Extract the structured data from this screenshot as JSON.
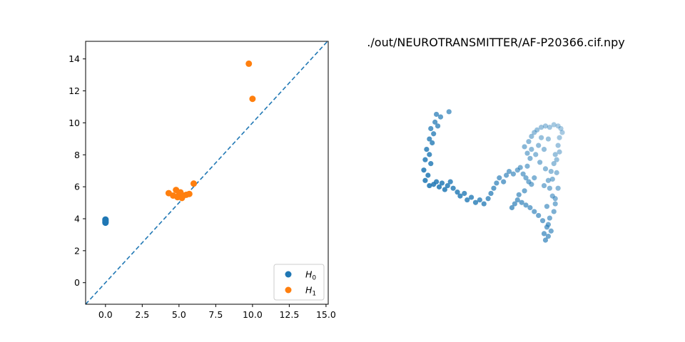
{
  "chart_data": [
    {
      "type": "scatter",
      "title": "",
      "xlabel": "",
      "ylabel": "",
      "xlim": [
        -1.35,
        15.15
      ],
      "ylim": [
        -1.35,
        15.1
      ],
      "xticks": [
        0.0,
        2.5,
        5.0,
        7.5,
        10.0,
        12.5,
        15.0
      ],
      "xtick_labels": [
        "0.0",
        "2.5",
        "5.0",
        "7.5",
        "10.0",
        "12.5",
        "15.0"
      ],
      "yticks": [
        0,
        2,
        4,
        6,
        8,
        10,
        12,
        14
      ],
      "ytick_labels": [
        "0",
        "2",
        "4",
        "6",
        "8",
        "10",
        "12",
        "14"
      ],
      "grid": false,
      "diagonal_line": {
        "style": "dashed",
        "color": "#1f77b4"
      },
      "legend": {
        "position": "lower-right"
      },
      "series": [
        {
          "name": "H0",
          "label_base": "H",
          "label_sub": "0",
          "color": "#1f77b4",
          "points": [
            [
              0,
              3.75
            ],
            [
              0,
              3.8
            ],
            [
              0,
              3.85
            ],
            [
              0,
              3.9
            ],
            [
              0,
              3.95
            ]
          ]
        },
        {
          "name": "H1",
          "label_base": "H",
          "label_sub": "1",
          "color": "#ff7f0e",
          "points": [
            [
              4.3,
              5.6
            ],
            [
              4.6,
              5.45
            ],
            [
              4.8,
              5.8
            ],
            [
              4.9,
              5.35
            ],
            [
              5.0,
              5.5
            ],
            [
              5.1,
              5.65
            ],
            [
              5.2,
              5.3
            ],
            [
              5.3,
              5.45
            ],
            [
              5.5,
              5.5
            ],
            [
              5.7,
              5.55
            ],
            [
              6.0,
              6.2
            ],
            [
              9.75,
              13.7
            ],
            [
              10.0,
              11.5
            ]
          ]
        }
      ]
    },
    {
      "type": "scatter",
      "title": "./out/NEUROTRANSMITTER/AF-P20366.cif.npy",
      "projection": "3d",
      "axes_visible": false,
      "color": "#1f77b4",
      "points_projected": [
        [
          0.1,
          0.97
        ],
        [
          0.13,
          0.95
        ],
        [
          0.19,
          0.99
        ],
        [
          0.09,
          0.91
        ],
        [
          0.11,
          0.88
        ],
        [
          0.06,
          0.86
        ],
        [
          0.08,
          0.82
        ],
        [
          0.05,
          0.78
        ],
        [
          0.07,
          0.75
        ],
        [
          0.03,
          0.7
        ],
        [
          0.05,
          0.66
        ],
        [
          0.02,
          0.62
        ],
        [
          0.06,
          0.59
        ],
        [
          0.01,
          0.54
        ],
        [
          0.04,
          0.5
        ],
        [
          0.02,
          0.46
        ],
        [
          0.05,
          0.42
        ],
        [
          0.08,
          0.43
        ],
        [
          0.1,
          0.45
        ],
        [
          0.12,
          0.41
        ],
        [
          0.14,
          0.44
        ],
        [
          0.16,
          0.39
        ],
        [
          0.18,
          0.42
        ],
        [
          0.2,
          0.45
        ],
        [
          0.22,
          0.4
        ],
        [
          0.25,
          0.37
        ],
        [
          0.27,
          0.34
        ],
        [
          0.3,
          0.36
        ],
        [
          0.32,
          0.31
        ],
        [
          0.35,
          0.33
        ],
        [
          0.38,
          0.29
        ],
        [
          0.41,
          0.31
        ],
        [
          0.44,
          0.28
        ],
        [
          0.47,
          0.32
        ],
        [
          0.49,
          0.36
        ],
        [
          0.51,
          0.4
        ],
        [
          0.53,
          0.44
        ],
        [
          0.55,
          0.48
        ],
        [
          0.58,
          0.45
        ],
        [
          0.6,
          0.5
        ],
        [
          0.62,
          0.53
        ],
        [
          0.65,
          0.51
        ],
        [
          0.68,
          0.54
        ],
        [
          0.7,
          0.56
        ],
        [
          0.72,
          0.51
        ],
        [
          0.74,
          0.48
        ],
        [
          0.76,
          0.45
        ],
        [
          0.75,
          0.57
        ],
        [
          0.77,
          0.63
        ],
        [
          0.75,
          0.67
        ],
        [
          0.73,
          0.72
        ],
        [
          0.76,
          0.76
        ],
        [
          0.78,
          0.8
        ],
        [
          0.8,
          0.83
        ],
        [
          0.82,
          0.85
        ],
        [
          0.85,
          0.87
        ],
        [
          0.88,
          0.88
        ],
        [
          0.91,
          0.87
        ],
        [
          0.94,
          0.89
        ],
        [
          0.97,
          0.88
        ],
        [
          0.99,
          0.86
        ],
        [
          1.0,
          0.83
        ],
        [
          0.98,
          0.79
        ],
        [
          0.97,
          0.73
        ],
        [
          0.95,
          0.66
        ],
        [
          0.94,
          0.59
        ],
        [
          0.92,
          0.53
        ],
        [
          0.93,
          0.47
        ],
        [
          0.91,
          0.4
        ],
        [
          0.93,
          0.34
        ],
        [
          0.95,
          0.28
        ],
        [
          0.94,
          0.22
        ],
        [
          0.91,
          0.17
        ],
        [
          0.9,
          0.12
        ],
        [
          0.92,
          0.07
        ],
        [
          0.9,
          0.03
        ],
        [
          0.88,
          0.0
        ],
        [
          0.87,
          0.05
        ],
        [
          0.89,
          0.1
        ],
        [
          0.86,
          0.15
        ],
        [
          0.83,
          0.19
        ],
        [
          0.8,
          0.22
        ],
        [
          0.77,
          0.25
        ],
        [
          0.74,
          0.27
        ],
        [
          0.71,
          0.29
        ],
        [
          0.68,
          0.31
        ],
        [
          0.66,
          0.28
        ],
        [
          0.64,
          0.25
        ],
        [
          0.69,
          0.35
        ],
        [
          0.73,
          0.38
        ],
        [
          0.78,
          0.7
        ],
        [
          0.83,
          0.73
        ],
        [
          0.87,
          0.7
        ],
        [
          0.9,
          0.78
        ],
        [
          0.85,
          0.79
        ],
        [
          0.81,
          0.66
        ],
        [
          0.96,
          0.62
        ],
        [
          0.98,
          0.68
        ],
        [
          0.87,
          0.42
        ],
        [
          0.9,
          0.46
        ],
        [
          0.88,
          0.55
        ],
        [
          0.84,
          0.6
        ],
        [
          0.8,
          0.48
        ],
        [
          0.78,
          0.43
        ],
        [
          0.96,
          0.52
        ],
        [
          0.97,
          0.4
        ],
        [
          0.95,
          0.32
        ],
        [
          0.89,
          0.26
        ]
      ]
    }
  ]
}
